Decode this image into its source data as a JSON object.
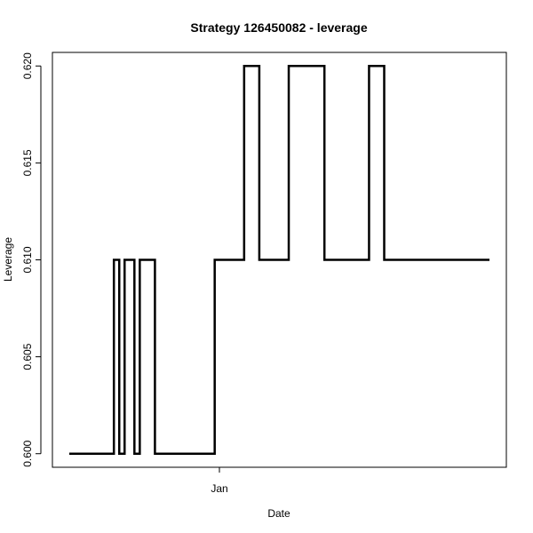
{
  "chart_data": {
    "type": "line",
    "title": "Strategy 126450082 - leverage",
    "xlabel": "Date",
    "ylabel": "Leverage",
    "x_tick_labels": [
      "Jan"
    ],
    "y_ticks": [
      0.6,
      0.605,
      0.61,
      0.615,
      0.62
    ],
    "y_tick_labels": [
      "0.600",
      "0.605",
      "0.610",
      "0.615",
      "0.620"
    ],
    "ylim": [
      0.5993,
      0.6207
    ],
    "grid": false,
    "legend": "none",
    "line_color": "#000000",
    "step": true,
    "series": [
      {
        "steps": [
          {
            "value": 0.6,
            "len": 50
          },
          {
            "value": 0.61,
            "len": 6
          },
          {
            "value": 0.6,
            "len": 6
          },
          {
            "value": 0.61,
            "len": 11
          },
          {
            "value": 0.6,
            "len": 6
          },
          {
            "value": 0.61,
            "len": 17
          },
          {
            "value": 0.6,
            "len": 67
          },
          {
            "value": 0.61,
            "len": 33
          },
          {
            "value": 0.62,
            "len": 17
          },
          {
            "value": 0.61,
            "len": 33
          },
          {
            "value": 0.62,
            "len": 40
          },
          {
            "value": 0.61,
            "len": 50
          },
          {
            "value": 0.62,
            "len": 17
          },
          {
            "value": 0.61,
            "len": 118
          }
        ]
      }
    ]
  }
}
